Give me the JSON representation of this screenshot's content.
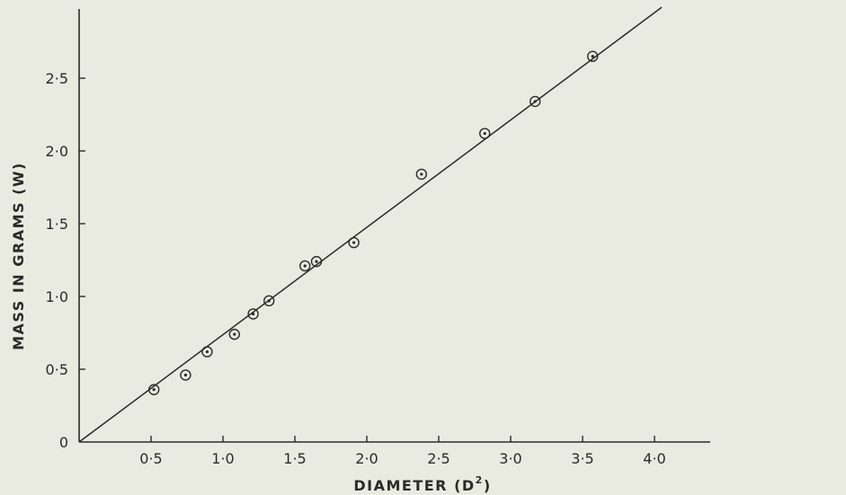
{
  "chart_data": {
    "type": "scatter",
    "title": "",
    "xlabel": "DIAMETER (D",
    "xlabel_sup": "2",
    "xlabel_close": ")",
    "ylabel": "MASS IN GRAMS (W)",
    "xlim": [
      0,
      4.4
    ],
    "ylim": [
      0,
      3.0
    ],
    "grid": false,
    "x_ticks": [
      {
        "value": 0.5,
        "label": "0·5"
      },
      {
        "value": 1.0,
        "label": "1·0"
      },
      {
        "value": 1.5,
        "label": "1·5"
      },
      {
        "value": 2.0,
        "label": "2·0"
      },
      {
        "value": 2.5,
        "label": "2·5"
      },
      {
        "value": 3.0,
        "label": "3·0"
      },
      {
        "value": 3.5,
        "label": "3·5"
      },
      {
        "value": 4.0,
        "label": "4·0"
      }
    ],
    "y_ticks": [
      {
        "value": 0,
        "label": "0"
      },
      {
        "value": 0.5,
        "label": "0·5"
      },
      {
        "value": 1.0,
        "label": "1·0"
      },
      {
        "value": 1.5,
        "label": "1·5"
      },
      {
        "value": 2.0,
        "label": "2·0"
      },
      {
        "value": 2.5,
        "label": "2·5"
      }
    ],
    "points": [
      {
        "x": 0.52,
        "y": 0.36
      },
      {
        "x": 0.74,
        "y": 0.46
      },
      {
        "x": 0.89,
        "y": 0.62
      },
      {
        "x": 1.08,
        "y": 0.74
      },
      {
        "x": 1.21,
        "y": 0.88
      },
      {
        "x": 1.32,
        "y": 0.97
      },
      {
        "x": 1.57,
        "y": 1.21
      },
      {
        "x": 1.65,
        "y": 1.24
      },
      {
        "x": 1.91,
        "y": 1.37
      },
      {
        "x": 2.38,
        "y": 1.84
      },
      {
        "x": 2.82,
        "y": 2.12
      },
      {
        "x": 3.17,
        "y": 2.34
      },
      {
        "x": 3.57,
        "y": 2.65
      }
    ],
    "fit_line": {
      "x": [
        0,
        4.0
      ],
      "y": [
        0,
        2.95
      ]
    },
    "colors": {
      "ink": "#2a2a2a",
      "background": "#e9ebe0"
    }
  }
}
